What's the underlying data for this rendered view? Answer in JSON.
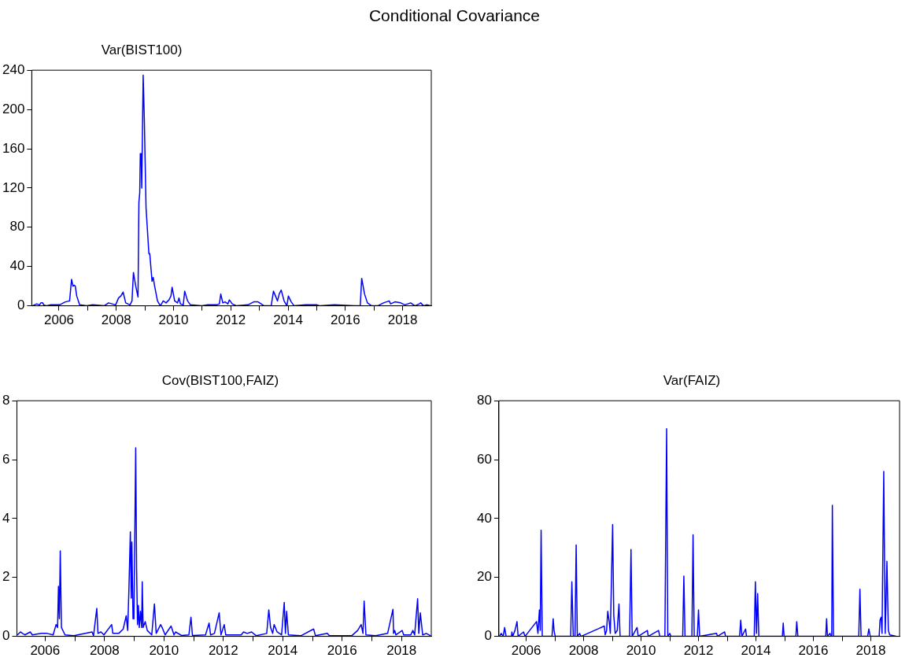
{
  "chart_data": [
    {
      "type": "line",
      "title": "Conditional Covariance",
      "subtitle": "Var(BIST100)",
      "xlim": [
        2005.05,
        2019
      ],
      "ylim": [
        0,
        240
      ],
      "yticks": [
        0,
        40,
        80,
        120,
        160,
        200,
        240
      ],
      "xticks": [
        2006,
        {
          "value": 2007,
          "label": null
        },
        2008,
        {
          "value": 2009,
          "label": null
        },
        2010,
        {
          "value": 2011,
          "label": null
        },
        2012,
        {
          "value": 2013,
          "label": null
        },
        2014,
        {
          "value": 2015,
          "label": null
        },
        2016,
        {
          "value": 2017,
          "label": null
        },
        2018
      ],
      "grid": false,
      "legend": false,
      "marker": "none",
      "line_style": "solid",
      "series": [
        {
          "color": "#0000ff",
          "x": [
            2005.07,
            2005.22,
            2005.32,
            2005.37,
            2005.43,
            2005.47,
            2005.57,
            2005.72,
            2006.02,
            2006.22,
            2006.37,
            2006.44,
            2006.49,
            2006.53,
            2006.57,
            2006.62,
            2006.72,
            2006.97,
            2007.18,
            2007.58,
            2007.73,
            2007.98,
            2008.08,
            2008.16,
            2008.24,
            2008.33,
            2008.48,
            2008.55,
            2008.6,
            2008.68,
            2008.76,
            2008.79,
            2008.82,
            2008.84,
            2008.87,
            2008.89,
            2008.91,
            2008.94,
            2008.98,
            2009.04,
            2009.14,
            2009.17,
            2009.25,
            2009.29,
            2009.34,
            2009.44,
            2009.54,
            2009.64,
            2009.74,
            2009.84,
            2009.91,
            2009.95,
            2010.04,
            2010.14,
            2010.19,
            2010.24,
            2010.34,
            2010.39,
            2010.49,
            2010.59,
            2010.99,
            2011.2,
            2011.5,
            2011.6,
            2011.65,
            2011.72,
            2011.8,
            2011.9,
            2011.95,
            2012.05,
            2012.2,
            2012.6,
            2012.8,
            2012.95,
            2013.06,
            2013.16,
            2013.41,
            2013.49,
            2013.56,
            2013.63,
            2013.69,
            2013.76,
            2013.86,
            2013.96,
            2014.01,
            2014.11,
            2014.21,
            2014.61,
            2015.01,
            2015.12,
            2015.62,
            2016.32,
            2016.52,
            2016.57,
            2016.67,
            2016.77,
            2016.92,
            2017.13,
            2017.33,
            2017.53,
            2017.58,
            2017.73,
            2017.93,
            2018.08,
            2018.28,
            2018.43,
            2018.58,
            2018.63,
            2018.73,
            2018.83,
            2018.98
          ],
          "values": [
            0,
            2,
            1,
            3,
            3,
            1,
            0,
            1,
            1,
            4,
            5,
            27,
            20,
            21,
            20,
            10,
            1,
            0,
            1,
            0,
            3,
            1,
            8,
            10,
            14,
            3,
            1,
            5,
            34,
            20,
            9,
            105,
            115,
            155,
            155,
            120,
            120,
            235,
            190,
            100,
            53,
            53,
            25,
            29,
            20,
            5,
            0,
            5,
            3,
            6,
            10,
            19,
            5,
            3,
            8,
            2,
            1,
            15,
            5,
            1,
            0,
            1,
            1,
            2,
            12,
            3,
            4,
            2,
            6,
            2,
            0,
            1,
            4,
            4,
            2,
            0,
            0,
            15,
            10,
            5,
            12,
            16,
            5,
            0,
            10,
            4,
            0,
            1,
            1,
            0,
            1,
            0,
            0,
            28,
            12,
            3,
            0,
            0,
            3,
            5,
            2,
            4,
            3,
            1,
            3,
            0,
            2,
            3,
            0,
            1,
            0
          ]
        }
      ]
    },
    {
      "type": "line",
      "title": "Cov(BIST100,FAIZ)",
      "xlim": [
        2005.05,
        2019
      ],
      "ylim": [
        0,
        8
      ],
      "yticks": [
        0,
        2,
        4,
        6,
        8
      ],
      "xticks": [
        2006,
        {
          "value": 2007,
          "label": null
        },
        2008,
        {
          "value": 2009,
          "label": null
        },
        2010,
        {
          "value": 2011,
          "label": null
        },
        2012,
        {
          "value": 2013,
          "label": null
        },
        2014,
        {
          "value": 2015,
          "label": null
        },
        2016,
        {
          "value": 2017,
          "label": null
        },
        2018
      ],
      "grid": false,
      "legend": false,
      "marker": "none",
      "line_style": "solid",
      "series": [
        {
          "color": "#0000ff",
          "x": [
            2005.07,
            2005.17,
            2005.24,
            2005.32,
            2005.5,
            2005.57,
            2005.87,
            2006.07,
            2006.27,
            2006.37,
            2006.42,
            2006.45,
            2006.48,
            2006.51,
            2006.55,
            2006.67,
            2006.97,
            2007.58,
            2007.63,
            2007.74,
            2007.78,
            2007.88,
            2007.98,
            2008.24,
            2008.28,
            2008.48,
            2008.63,
            2008.73,
            2008.78,
            2008.82,
            2008.87,
            2008.9,
            2008.92,
            2008.96,
            2008.99,
            2009.05,
            2009.08,
            2009.11,
            2009.14,
            2009.17,
            2009.21,
            2009.25,
            2009.27,
            2009.3,
            2009.37,
            2009.44,
            2009.59,
            2009.68,
            2009.74,
            2009.89,
            2009.94,
            2010.04,
            2010.24,
            2010.34,
            2010.39,
            2010.59,
            2010.84,
            2010.91,
            2010.96,
            2011.4,
            2011.52,
            2011.57,
            2011.7,
            2011.86,
            2011.92,
            2012.03,
            2012.08,
            2012.6,
            2012.68,
            2012.8,
            2012.95,
            2013.11,
            2013.46,
            2013.53,
            2013.59,
            2013.66,
            2013.71,
            2013.81,
            2013.96,
            2014.05,
            2014.09,
            2014.13,
            2014.19,
            2014.61,
            2015.04,
            2015.1,
            2015.5,
            2015.57,
            2016.32,
            2016.52,
            2016.64,
            2016.7,
            2016.74,
            2016.8,
            2017.13,
            2017.53,
            2017.71,
            2017.73,
            2017.77,
            2017.81,
            2018.02,
            2018.07,
            2018.31,
            2018.38,
            2018.44,
            2018.54,
            2018.58,
            2018.63,
            2018.71,
            2018.83,
            2018.98
          ],
          "values": [
            0.05,
            0.15,
            0.1,
            0.05,
            0.15,
            0.05,
            0.1,
            0.1,
            0.05,
            0.4,
            0.3,
            1.7,
            0.6,
            2.9,
            0.3,
            0.05,
            0.02,
            0.15,
            0.02,
            0.95,
            0.1,
            0.15,
            0.05,
            0.4,
            0.1,
            0.1,
            0.25,
            0.7,
            0.2,
            1.55,
            3.55,
            1.3,
            3.2,
            0.6,
            0.6,
            6.4,
            2.3,
            0.4,
            1.05,
            0.3,
            0.85,
            0.3,
            1.85,
            0.3,
            0.5,
            0.2,
            0.05,
            1.1,
            0.1,
            0.4,
            0.3,
            0.05,
            0.35,
            0.05,
            0.15,
            0.03,
            0.05,
            0.65,
            0.03,
            0.05,
            0.45,
            0.05,
            0.1,
            0.8,
            0.05,
            0.4,
            0.05,
            0.05,
            0.15,
            0.1,
            0.15,
            0.02,
            0.1,
            0.9,
            0.3,
            0.1,
            0.4,
            0.15,
            0.05,
            1.15,
            0.1,
            0.85,
            0.05,
            0.02,
            0.25,
            0.02,
            0.1,
            0.02,
            0.02,
            0.2,
            0.4,
            0.1,
            1.2,
            0.05,
            0.02,
            0.1,
            0.92,
            0.1,
            0.2,
            0.05,
            0.2,
            0.05,
            0.05,
            0.2,
            0.05,
            1.28,
            0.1,
            0.8,
            0.05,
            0.1,
            0.02
          ]
        }
      ]
    },
    {
      "type": "line",
      "title": "Var(FAIZ)",
      "xlim": [
        2005.05,
        2019
      ],
      "ylim": [
        0,
        80
      ],
      "yticks": [
        0,
        20,
        40,
        60,
        80
      ],
      "xticks": [
        2006,
        {
          "value": 2007,
          "label": null
        },
        2008,
        {
          "value": 2009,
          "label": null
        },
        2010,
        {
          "value": 2011,
          "label": null
        },
        2012,
        {
          "value": 2013,
          "label": null
        },
        2014,
        {
          "value": 2015,
          "label": null
        },
        2016,
        {
          "value": 2017,
          "label": null
        },
        2018
      ],
      "grid": false,
      "legend": false,
      "marker": "none",
      "line_style": "solid",
      "series": [
        {
          "color": "#0000ff",
          "x": [
            2005.07,
            2005.13,
            2005.2,
            2005.25,
            2005.3,
            2005.49,
            2005.5,
            2005.53,
            2005.61,
            2005.68,
            2005.72,
            2005.91,
            2005.96,
            2006.36,
            2006.41,
            2006.46,
            2006.49,
            2006.52,
            2006.56,
            2006.9,
            2006.94,
            2006.97,
            2007.01,
            2007.55,
            2007.59,
            2007.64,
            2007.7,
            2007.74,
            2007.78,
            2007.86,
            2007.91,
            2008.72,
            2008.75,
            2008.8,
            2008.84,
            2008.89,
            2008.93,
            2009.01,
            2009.05,
            2009.1,
            2009.17,
            2009.23,
            2009.27,
            2009.6,
            2009.65,
            2009.69,
            2009.86,
            2009.9,
            2010.22,
            2010.25,
            2010.61,
            2010.65,
            2010.83,
            2010.89,
            2010.93,
            2011,
            2011.04,
            2011.45,
            2011.49,
            2011.53,
            2011.77,
            2011.81,
            2011.85,
            2011.96,
            2012,
            2012.04,
            2012.63,
            2012.66,
            2012.91,
            2012.94,
            2013.43,
            2013.47,
            2013.51,
            2013.64,
            2013.67,
            2013.94,
            2013.98,
            2014.02,
            2014.06,
            2014.1,
            2014.92,
            2014.95,
            2014.98,
            2015.39,
            2015.42,
            2015.46,
            2016.43,
            2016.46,
            2016.49,
            2016.58,
            2016.61,
            2016.64,
            2016.66,
            2016.7,
            2017.58,
            2017.62,
            2017.66,
            2017.89,
            2017.93,
            2017.98,
            2018.29,
            2018.32,
            2018.36,
            2018.39,
            2018.45,
            2018.5,
            2018.53,
            2018.56,
            2018.61,
            2018.66,
            2018.88
          ],
          "values": [
            0,
            1,
            0,
            3,
            0,
            0,
            1.5,
            0,
            2,
            5,
            0,
            1.5,
            0,
            5,
            1,
            9,
            2,
            36,
            0,
            0,
            6,
            2,
            0,
            0,
            18.5,
            0,
            0,
            31,
            0,
            1,
            0,
            3.5,
            0.5,
            2,
            8.5,
            5,
            1,
            38,
            7,
            1,
            2,
            11,
            0,
            0,
            29.5,
            0,
            3,
            0,
            2,
            0,
            2,
            0,
            0,
            70.5,
            0,
            1,
            0,
            0,
            20.5,
            0,
            0,
            34.5,
            0,
            0,
            9,
            0,
            1,
            0,
            1.5,
            0,
            0,
            5.5,
            0,
            2.5,
            0,
            0,
            18.5,
            1,
            14.5,
            0,
            0,
            4.5,
            0,
            0,
            5,
            0,
            0,
            6,
            0,
            1,
            0,
            0,
            44.5,
            0,
            0,
            16,
            0,
            0,
            2.5,
            0,
            0,
            5.5,
            6.5,
            1,
            56,
            1,
            12,
            25.5,
            2,
            0.5,
            0
          ]
        }
      ]
    }
  ]
}
